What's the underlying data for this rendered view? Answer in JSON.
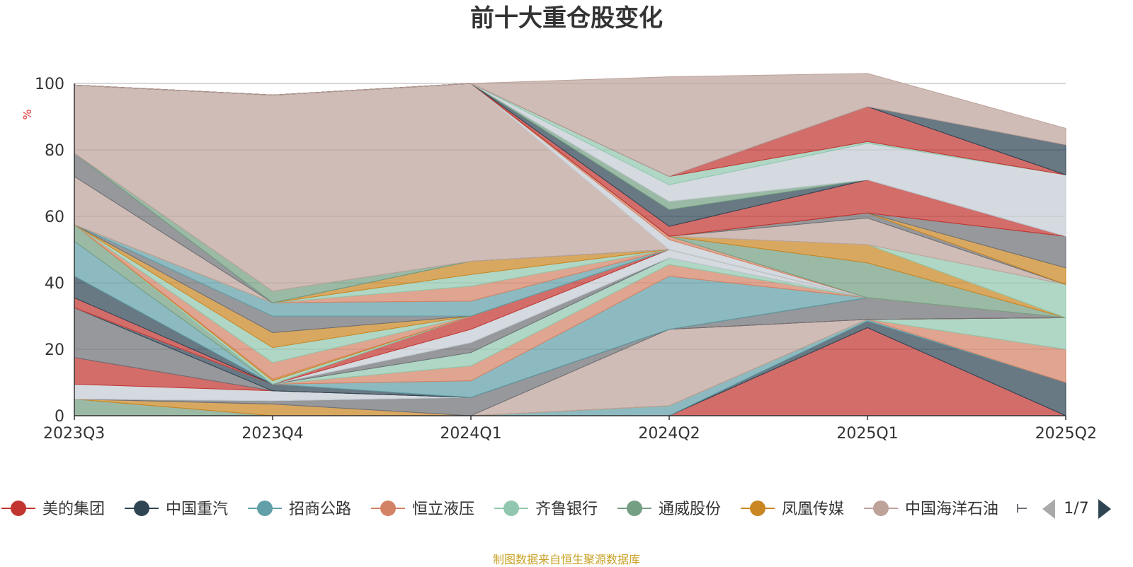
{
  "chart_data": {
    "type": "area",
    "stacked": true,
    "title": "前十大重仓股变化",
    "ylabel": "%",
    "ylim": [
      0,
      100
    ],
    "yticks": [
      0,
      20,
      40,
      60,
      80,
      100
    ],
    "x": [
      "2023Q3",
      "2023Q4",
      "2024Q1",
      "2024Q2",
      "2025Q1",
      "2025Q2"
    ],
    "grid": true,
    "legend_position": "bottom",
    "legend_page": "1/7",
    "source_note": "制图数据来自恒生聚源数据库",
    "series": [
      {
        "name": "美的集团",
        "color": "#c23531",
        "legend": true,
        "values": [
          0,
          0,
          0,
          0,
          26.5,
          0
        ]
      },
      {
        "name": "中国重汽",
        "color": "#2f4554",
        "legend": true,
        "values": [
          0,
          0,
          0,
          0,
          2,
          10
        ]
      },
      {
        "name": "招商公路",
        "color": "#61a0a8",
        "legend": true,
        "values": [
          0,
          0,
          0,
          3,
          0.5,
          0
        ]
      },
      {
        "name": "恒立液压",
        "color": "#d48265",
        "legend": true,
        "values": [
          0,
          0,
          0,
          0,
          0,
          10
        ]
      },
      {
        "name": "齐鲁银行",
        "color": "#91c7ae",
        "legend": true,
        "values": [
          0,
          0,
          0,
          0,
          0,
          9.5
        ]
      },
      {
        "name": "通威股份",
        "color": "#749f83",
        "legend": true,
        "values": [
          5,
          0,
          0,
          0,
          0,
          0
        ]
      },
      {
        "name": "凤凰传媒",
        "color": "#ca8622",
        "legend": true,
        "values": [
          0,
          3.5,
          0,
          0,
          0,
          0
        ]
      },
      {
        "name": "中国海洋石油",
        "color": "#bda29a",
        "legend": true,
        "values": [
          0,
          0,
          0,
          23,
          0,
          0
        ]
      },
      {
        "name": "",
        "color": "#6e7074",
        "legend": false,
        "values": [
          0,
          1,
          5.5,
          0,
          0,
          0
        ]
      },
      {
        "name": "",
        "color": "#c4ccd3",
        "legend": false,
        "values": [
          4.5,
          3,
          0,
          0,
          0,
          0
        ]
      },
      {
        "name": "",
        "color": "#c23531",
        "legend": false,
        "values": [
          8,
          0,
          0,
          0,
          0,
          0
        ]
      },
      {
        "name": "",
        "color": "#6e7074",
        "legend": false,
        "values": [
          15,
          0,
          0,
          0,
          6.5,
          0
        ]
      },
      {
        "name": "",
        "color": "#2f4554",
        "legend": false,
        "values": [
          0,
          2,
          0,
          0,
          0,
          0
        ]
      },
      {
        "name": "",
        "color": "#61a0a8",
        "legend": false,
        "values": [
          0,
          0,
          5,
          16,
          0,
          0
        ]
      },
      {
        "name": "",
        "color": "#d48265",
        "legend": false,
        "values": [
          0,
          0,
          4.5,
          3.5,
          0,
          0
        ]
      },
      {
        "name": "",
        "color": "#91c7ae",
        "legend": false,
        "values": [
          0,
          0,
          4,
          2,
          0,
          0
        ]
      },
      {
        "name": "",
        "color": "#6e7074",
        "legend": false,
        "values": [
          0,
          0,
          3,
          0,
          0,
          0
        ]
      },
      {
        "name": "",
        "color": "#c4ccd3",
        "legend": false,
        "values": [
          0,
          0,
          4,
          2.5,
          0,
          0
        ]
      },
      {
        "name": "",
        "color": "#c23531",
        "legend": false,
        "values": [
          3,
          0,
          4,
          0,
          0,
          0
        ]
      },
      {
        "name": "",
        "color": "#2f4554",
        "legend": false,
        "values": [
          6.5,
          0,
          0,
          0,
          0,
          0
        ]
      },
      {
        "name": "",
        "color": "#61a0a8",
        "legend": false,
        "values": [
          10.5,
          0,
          0,
          0,
          0,
          0
        ]
      },
      {
        "name": "",
        "color": "#749f83",
        "legend": false,
        "values": [
          5,
          0,
          0,
          0,
          0,
          0
        ]
      },
      {
        "name": "",
        "color": "#91c7ae",
        "legend": false,
        "values": [
          0,
          0,
          0,
          0,
          0,
          0
        ]
      },
      {
        "name": "",
        "color": "#d48265",
        "legend": false,
        "values": [
          0,
          0,
          0,
          0,
          0,
          0
        ]
      },
      {
        "name": "",
        "color": "#d48265",
        "legend": false,
        "values": [
          0,
          0,
          0,
          0,
          0,
          0
        ]
      },
      {
        "name": "",
        "color": "#91c7ae",
        "legend": false,
        "values": [
          0,
          1,
          0,
          0,
          0,
          0
        ]
      },
      {
        "name": "",
        "color": "#ca8622",
        "legend": false,
        "values": [
          0,
          0.5,
          0,
          0,
          0,
          0
        ]
      },
      {
        "name": "",
        "color": "#d48265",
        "legend": false,
        "values": [
          0,
          5,
          0,
          0,
          0,
          0
        ]
      },
      {
        "name": "",
        "color": "#91c7ae",
        "legend": false,
        "values": [
          0,
          4.5,
          0,
          0,
          0,
          0
        ]
      },
      {
        "name": "",
        "color": "#ca8622",
        "legend": false,
        "values": [
          0,
          4.5,
          0,
          0,
          0,
          0
        ]
      },
      {
        "name": "",
        "color": "#6e7074",
        "legend": false,
        "values": [
          0,
          5,
          0,
          0,
          0,
          0
        ]
      },
      {
        "name": "",
        "color": "#61a0a8",
        "legend": false,
        "values": [
          0,
          4,
          4.5,
          0,
          0,
          0
        ]
      },
      {
        "name": "",
        "color": "#d48265",
        "legend": false,
        "values": [
          0,
          0,
          4.5,
          0,
          0,
          0
        ]
      },
      {
        "name": "",
        "color": "#91c7ae",
        "legend": false,
        "values": [
          0,
          0,
          3.5,
          0,
          0,
          0
        ]
      },
      {
        "name": "",
        "color": "#ca8622",
        "legend": false,
        "values": [
          0,
          0,
          4,
          0,
          0,
          0
        ]
      },
      {
        "name": "",
        "color": "#bda29a",
        "legend": false,
        "values": [
          14.5,
          0,
          0,
          0,
          0,
          0
        ]
      },
      {
        "name": "",
        "color": "#6e7074",
        "legend": false,
        "values": [
          7,
          0,
          0,
          0,
          0,
          0
        ]
      },
      {
        "name": "",
        "color": "#749f83",
        "legend": false,
        "values": [
          0,
          3.5,
          0,
          0,
          0,
          0
        ]
      },
      {
        "name": "",
        "color": "#6e7074",
        "legend": false,
        "values": [
          0,
          0,
          0,
          0,
          0,
          0
        ]
      },
      {
        "name": "",
        "color": "#bda29a",
        "legend": false,
        "values": [
          20.5,
          59,
          53.5,
          0,
          0,
          0
        ]
      },
      {
        "name": "",
        "color": "#6e7074",
        "legend": false,
        "values": [
          0,
          0,
          0,
          0,
          0,
          0
        ]
      },
      {
        "name": "",
        "color": "#c4ccd3",
        "legend": false,
        "values": [
          0,
          0,
          0,
          3,
          0,
          0
        ]
      },
      {
        "name": "",
        "color": "#d48265",
        "legend": false,
        "values": [
          0,
          0,
          0,
          1,
          0,
          0
        ]
      },
      {
        "name": "",
        "color": "#749f83",
        "legend": false,
        "values": [
          0,
          0,
          0,
          0,
          10.5,
          0
        ]
      },
      {
        "name": "",
        "color": "#91c7ae",
        "legend": false,
        "values": [
          0,
          0,
          0,
          0,
          0,
          0
        ]
      },
      {
        "name": "",
        "color": "#ca8622",
        "legend": false,
        "values": [
          0,
          0,
          0,
          0,
          5.5,
          0
        ]
      },
      {
        "name": "",
        "color": "#91c7ae",
        "legend": false,
        "values": [
          0,
          0,
          0,
          0,
          0,
          10
        ]
      },
      {
        "name": "",
        "color": "#d48265",
        "legend": false,
        "values": [
          0,
          0,
          0,
          0,
          0,
          0
        ]
      },
      {
        "name": "",
        "color": "#bda29a",
        "legend": false,
        "values": [
          0,
          0,
          0,
          0,
          8,
          0
        ]
      },
      {
        "name": "",
        "color": "#6e7074",
        "legend": false,
        "values": [
          0,
          0,
          0,
          0,
          1.5,
          0
        ]
      },
      {
        "name": "",
        "color": "#ca8622",
        "legend": false,
        "values": [
          0,
          0,
          0,
          0,
          0,
          5
        ]
      },
      {
        "name": "",
        "color": "#6e7074",
        "legend": false,
        "values": [
          0,
          0,
          0,
          0,
          0,
          9.5
        ]
      },
      {
        "name": "",
        "color": "#c23531",
        "legend": false,
        "values": [
          0,
          0,
          0,
          3,
          10,
          0
        ]
      },
      {
        "name": "",
        "color": "#2f4554",
        "legend": false,
        "values": [
          0,
          0,
          0,
          5,
          0,
          0
        ]
      },
      {
        "name": "",
        "color": "#749f83",
        "legend": false,
        "values": [
          0,
          0,
          0,
          2.5,
          0,
          0
        ]
      },
      {
        "name": "",
        "color": "#c4ccd3",
        "legend": false,
        "values": [
          0,
          0,
          0,
          5,
          11,
          18.5
        ]
      },
      {
        "name": "",
        "color": "#91c7ae",
        "legend": false,
        "values": [
          0,
          0,
          0,
          2.5,
          0.5,
          0
        ]
      },
      {
        "name": "",
        "color": "#c23531",
        "legend": false,
        "values": [
          0,
          0,
          0,
          0,
          10.5,
          0
        ]
      },
      {
        "name": "",
        "color": "#2f4554",
        "legend": false,
        "values": [
          0,
          0,
          0,
          0,
          0,
          9
        ]
      },
      {
        "name": "",
        "color": "#bda29a",
        "legend": false,
        "values": [
          0,
          0,
          0,
          30,
          10,
          5
        ]
      }
    ]
  }
}
